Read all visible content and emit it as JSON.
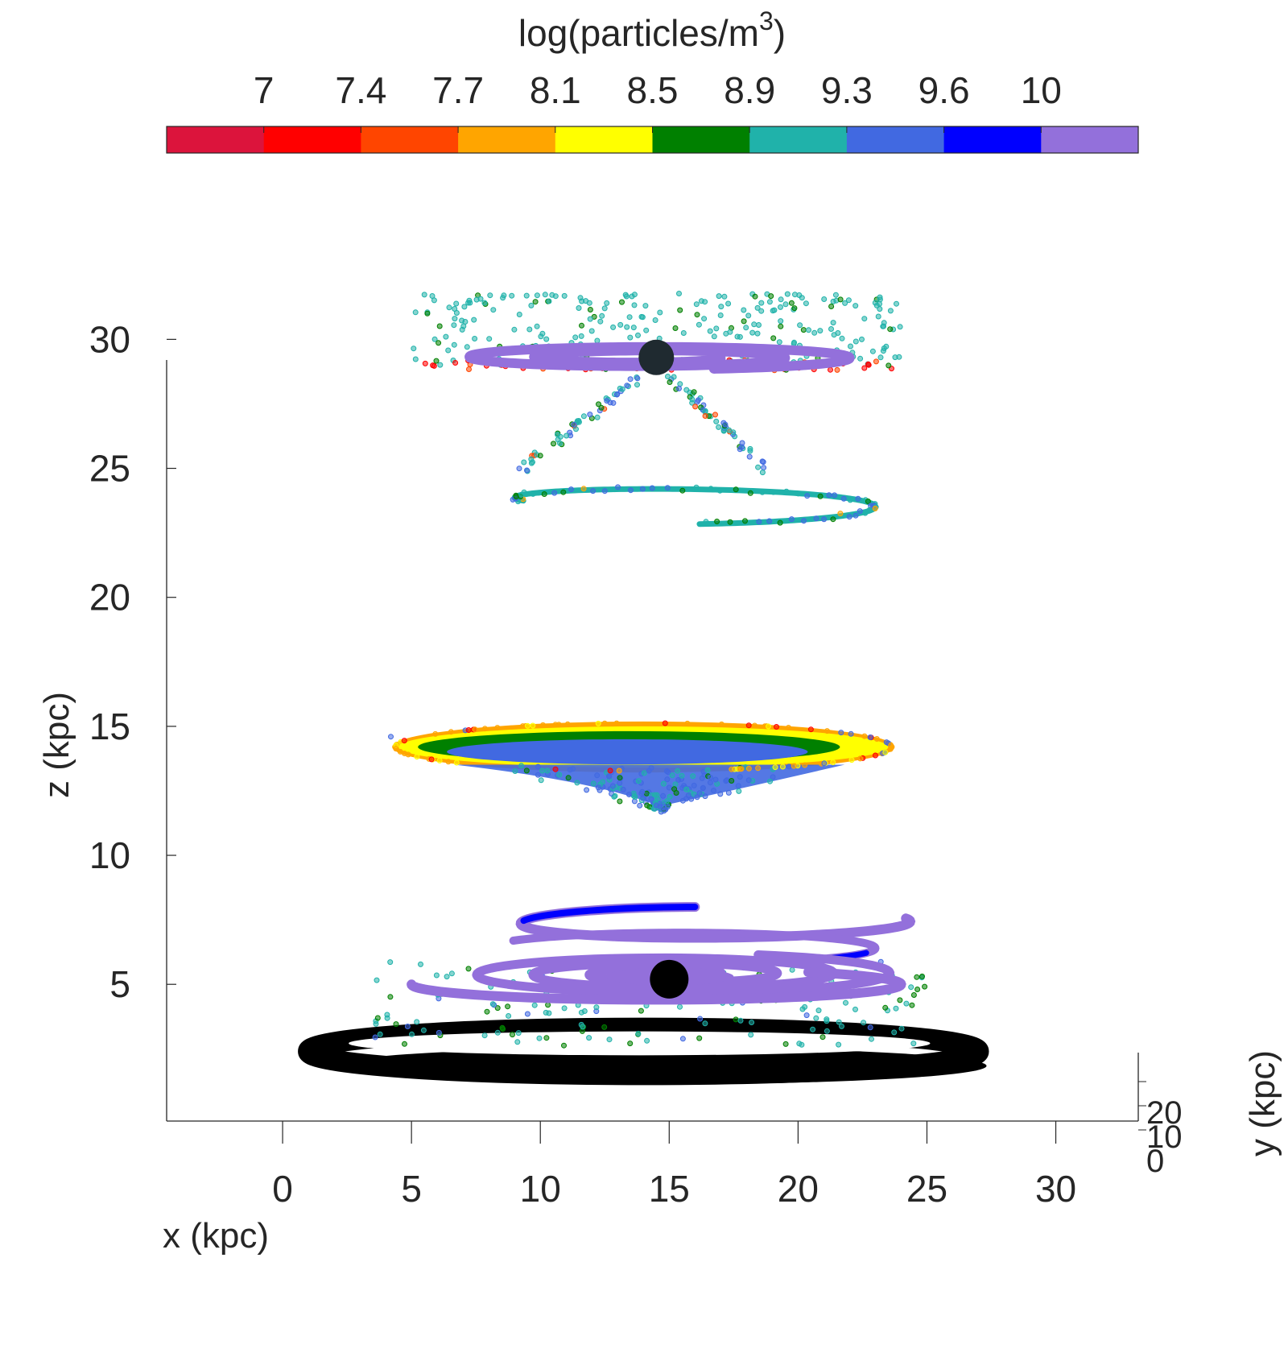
{
  "chart_data": {
    "type": "scatter",
    "title": "",
    "xlabel": "x (kpc)",
    "ylabel": "z (kpc)",
    "zlabel": "y (kpc)",
    "xlim": [
      -4.5,
      33.2
    ],
    "zlim": [
      -0.3,
      29.2
    ],
    "x_ticks": [
      0,
      5,
      10,
      15,
      20,
      25,
      30
    ],
    "x_tick_labels": [
      "0",
      "5",
      "10",
      "15",
      "20",
      "25",
      "30"
    ],
    "z_ticks": [
      5,
      10,
      15,
      20,
      25,
      30
    ],
    "z_tick_labels": [
      "5",
      "10",
      "15",
      "20",
      "25",
      "30"
    ],
    "y_ticks": [
      0,
      10,
      20
    ],
    "y_tick_labels": [
      "0",
      "10",
      "20"
    ],
    "grid": false,
    "colorbar": {
      "title_prefix": "log(particles/m",
      "title_superscript": "3",
      "title_suffix": ")",
      "ticks": [
        7,
        7.4,
        7.7,
        8.1,
        8.5,
        8.9,
        9.3,
        9.6,
        10
      ],
      "tick_labels": [
        "7",
        "7.4",
        "7.7",
        "8.1",
        "8.5",
        "8.9",
        "9.3",
        "9.6",
        "10"
      ],
      "colors": [
        "#dc143c",
        "#ff0000",
        "#ff4500",
        "#ffa500",
        "#ffff00",
        "#008000",
        "#20b2aa",
        "#4169e1",
        "#0000ff",
        "#9370db"
      ]
    },
    "structures": [
      {
        "kind": "ring",
        "x_center": 14,
        "z_center": 29.3,
        "x_radius": 8.5,
        "z_radius": 0.45,
        "color": "#9370db"
      },
      {
        "kind": "scatter_cloud",
        "x_range": [
          5,
          24
        ],
        "z_range": [
          28.5,
          31.5
        ],
        "color": "#20b2aa"
      },
      {
        "kind": "sphere",
        "x": 14.5,
        "z": 29.3,
        "color": "#1a1a1a"
      },
      {
        "kind": "ring",
        "x_center": 16,
        "z_center": 23.9,
        "x_radius": 7,
        "z_radius": 0.5,
        "color": "#20b2aa"
      },
      {
        "kind": "disk",
        "x_center": 14,
        "z_center": 14.2,
        "x_radius": 9.5,
        "z_radius": 0.8,
        "color": "#4169e1"
      },
      {
        "kind": "spiral",
        "x_center": 16,
        "z_center": 5.5,
        "color": "#9370db"
      },
      {
        "kind": "spiral_outer",
        "x_center": 16,
        "z_center": 7.3,
        "color": "#0000ff"
      },
      {
        "kind": "sphere",
        "x": 15,
        "z": 5.2,
        "color": "#000000"
      },
      {
        "kind": "ring",
        "x_center": 14,
        "z_center": 2.4,
        "x_radius": 13,
        "z_radius": 0.9,
        "color": "#000000"
      }
    ]
  }
}
